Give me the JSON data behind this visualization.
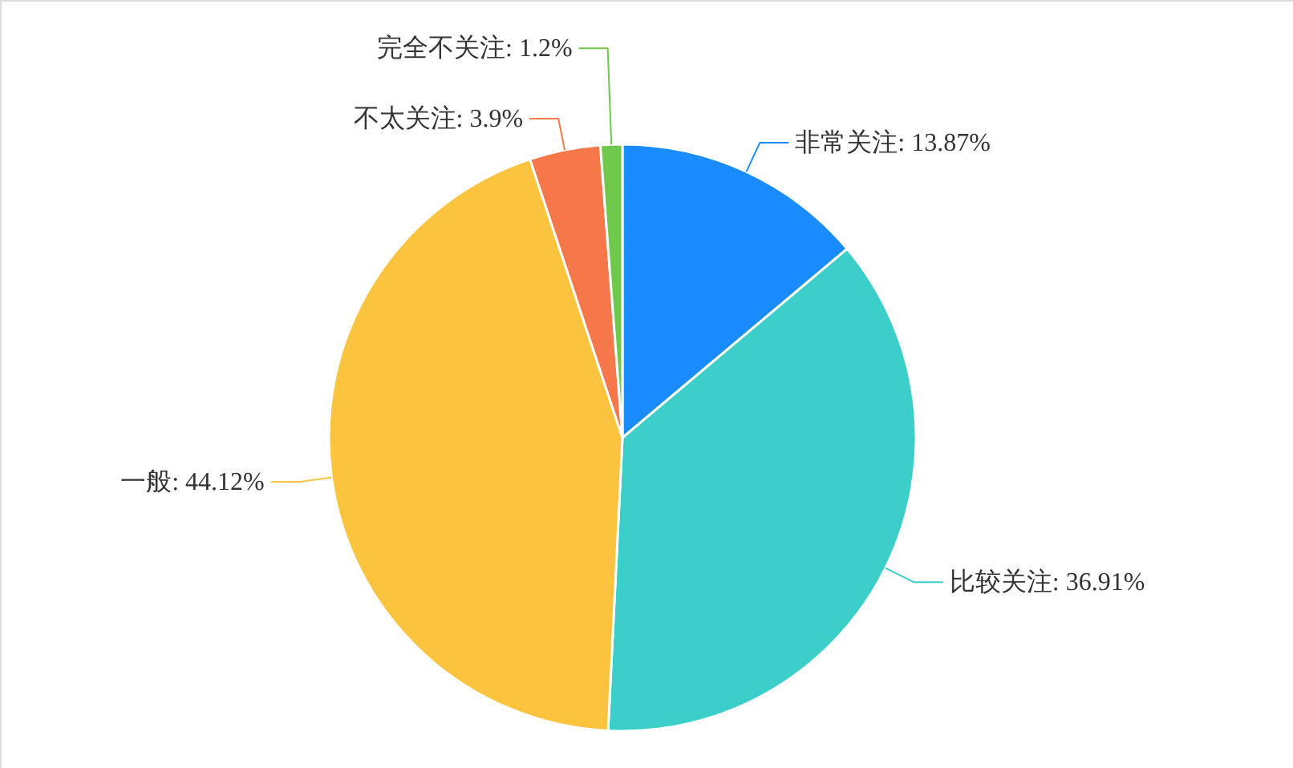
{
  "chart_data": {
    "type": "pie",
    "categories": [
      "非常关注",
      "比较关注",
      "一般",
      "不太关注",
      "完全不关注"
    ],
    "values": [
      13.87,
      36.91,
      44.12,
      3.9,
      1.2
    ],
    "value_labels": [
      "13.87%",
      "36.91%",
      "44.12%",
      "3.9%",
      "1.2%"
    ],
    "colors": [
      "#1a8cff",
      "#3ccfc9",
      "#fcc33f",
      "#f6774a",
      "#6fc74b"
    ]
  }
}
